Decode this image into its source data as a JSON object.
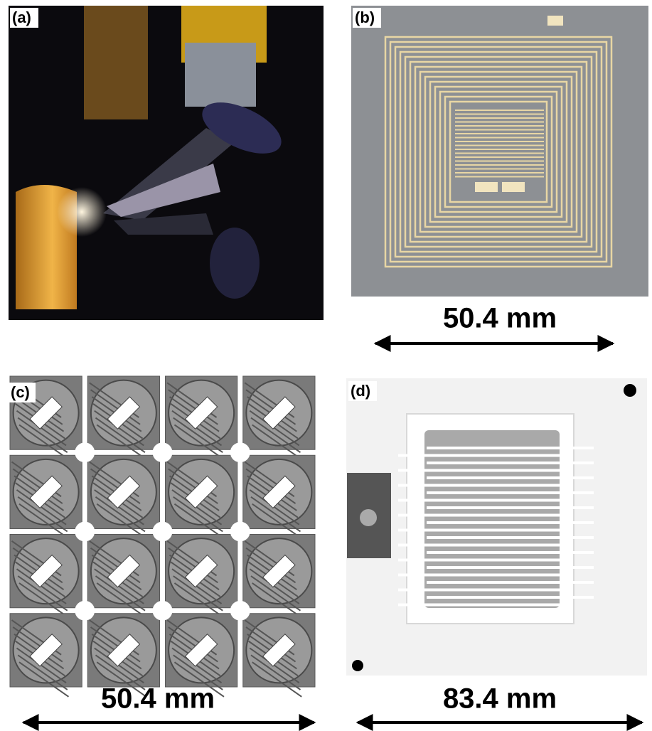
{
  "panels": [
    {
      "label": "(a)"
    },
    {
      "label": "(b)",
      "scale": "50.4 mm"
    },
    {
      "label": "(c)",
      "scale": "50.4 mm"
    },
    {
      "label": "(d)",
      "scale": "83.4 mm"
    }
  ]
}
